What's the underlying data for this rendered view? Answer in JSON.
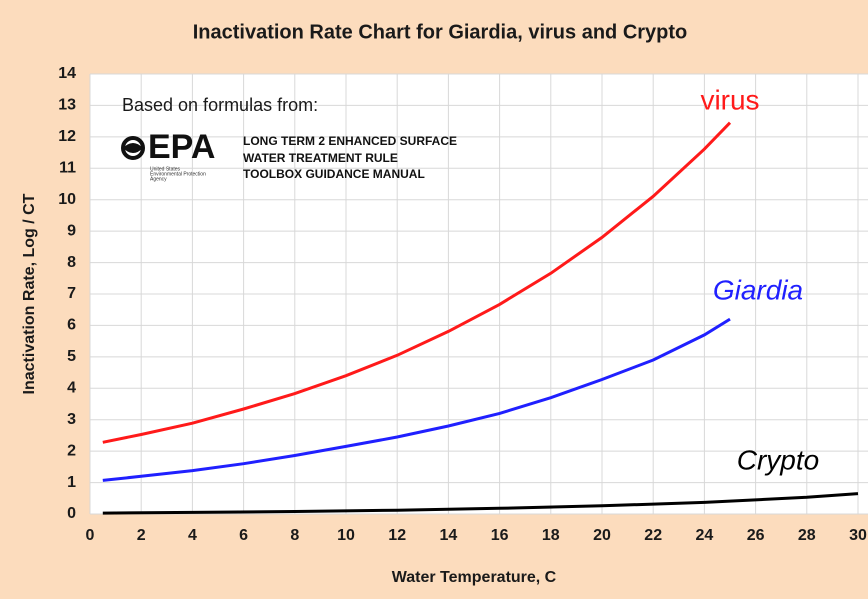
{
  "chart_data": {
    "type": "line",
    "title": "Inactivation Rate Chart for Giardia, virus and Crypto",
    "x_label": "Water Temperature, C",
    "y_label": "Inactivation Rate, Log / CT",
    "xlim": [
      0,
      30
    ],
    "ylim": [
      0,
      14
    ],
    "xticks": [
      0,
      2,
      4,
      6,
      8,
      10,
      12,
      14,
      16,
      18,
      20,
      22,
      24,
      26,
      28,
      30
    ],
    "yticks": [
      0,
      1,
      2,
      3,
      4,
      5,
      6,
      7,
      8,
      9,
      10,
      11,
      12,
      13,
      14
    ],
    "grid": true,
    "series": [
      {
        "name": "virus",
        "color": "#ff1a1a",
        "x": [
          0.5,
          2,
          4,
          6,
          8,
          10,
          12,
          14,
          16,
          18,
          20,
          22,
          24,
          25
        ],
        "values": [
          2.28,
          2.53,
          2.89,
          3.34,
          3.83,
          4.4,
          5.05,
          5.81,
          6.67,
          7.66,
          8.8,
          10.11,
          11.61,
          12.45
        ]
      },
      {
        "name": "Giardia",
        "color": "#2020ff",
        "x": [
          0.5,
          2,
          4,
          6,
          8,
          10,
          12,
          14,
          16,
          18,
          20,
          22,
          24,
          25
        ],
        "values": [
          1.07,
          1.2,
          1.38,
          1.6,
          1.86,
          2.15,
          2.45,
          2.8,
          3.2,
          3.7,
          4.28,
          4.9,
          5.7,
          6.2
        ]
      },
      {
        "name": "Crypto",
        "color": "#000000",
        "x": [
          0.5,
          4,
          8,
          12,
          16,
          20,
          24,
          28,
          30
        ],
        "values": [
          0.03,
          0.05,
          0.08,
          0.12,
          0.18,
          0.26,
          0.37,
          0.53,
          0.65
        ]
      }
    ],
    "annotations": {
      "source_intro": "Based on formulas from:",
      "logo": "EPA",
      "logo_caption": [
        "United States",
        "Environmental Protection",
        "Agency"
      ],
      "document": [
        "LONG TERM 2 ENHANCED SURFACE",
        "WATER TREATMENT RULE",
        "TOOLBOX GUIDANCE MANUAL"
      ]
    }
  }
}
